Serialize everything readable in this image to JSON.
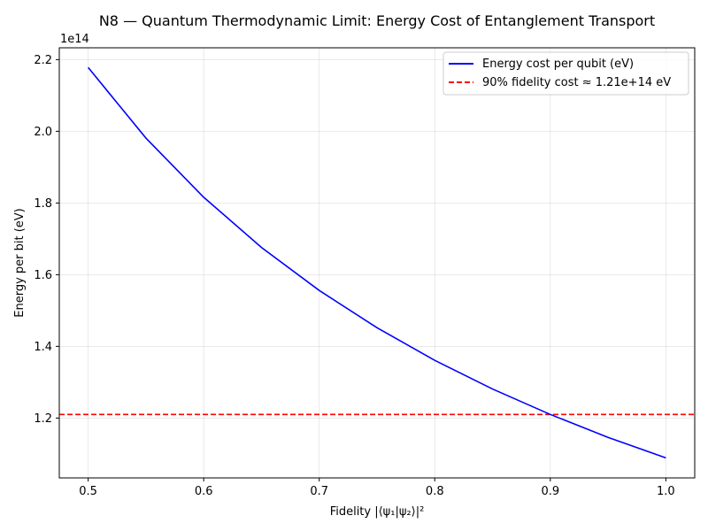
{
  "chart_data": {
    "type": "line",
    "title": "N8 — Quantum Thermodynamic Limit: Energy Cost of Entanglement Transport",
    "xlabel": "Fidelity |⟨ψ₁|ψ₂⟩|²",
    "ylabel": "Energy per bit (eV)",
    "y_offset_text": "1e14",
    "xlim": [
      0.475,
      1.025
    ],
    "ylim": [
      103300000000000.0,
      223300000000000.0
    ],
    "x_ticks": [
      0.5,
      0.6,
      0.7,
      0.8,
      0.9,
      1.0
    ],
    "x_tick_labels": [
      "0.5",
      "0.6",
      "0.7",
      "0.8",
      "0.9",
      "1.0"
    ],
    "y_ticks": [
      120000000000000.0,
      140000000000000.0,
      160000000000000.0,
      180000000000000.0,
      200000000000000.0,
      220000000000000.0
    ],
    "y_tick_labels": [
      "1.2",
      "1.4",
      "1.6",
      "1.8",
      "2.0",
      "2.2"
    ],
    "grid": true,
    "legend_position": "top-right",
    "series": [
      {
        "name": "Energy cost per qubit (eV)",
        "color": "#0000ff",
        "style": "solid",
        "x": [
          0.5,
          0.55,
          0.6,
          0.65,
          0.7,
          0.75,
          0.8,
          0.85,
          0.9,
          0.95,
          1.0
        ],
        "y": [
          217800000000000.0,
          198100000000000.0,
          181600000000000.0,
          167600000000000.0,
          155600000000000.0,
          145200000000000.0,
          136100000000000.0,
          128100000000000.0,
          121000000000000.0,
          114600000000000.0,
          108900000000000.0
        ]
      }
    ],
    "reference_lines": [
      {
        "name": "90% fidelity cost ≈ 1.21e+14 eV",
        "orientation": "horizontal",
        "y": 121000000000000.0,
        "color": "#ff0000",
        "style": "dashed"
      }
    ]
  }
}
